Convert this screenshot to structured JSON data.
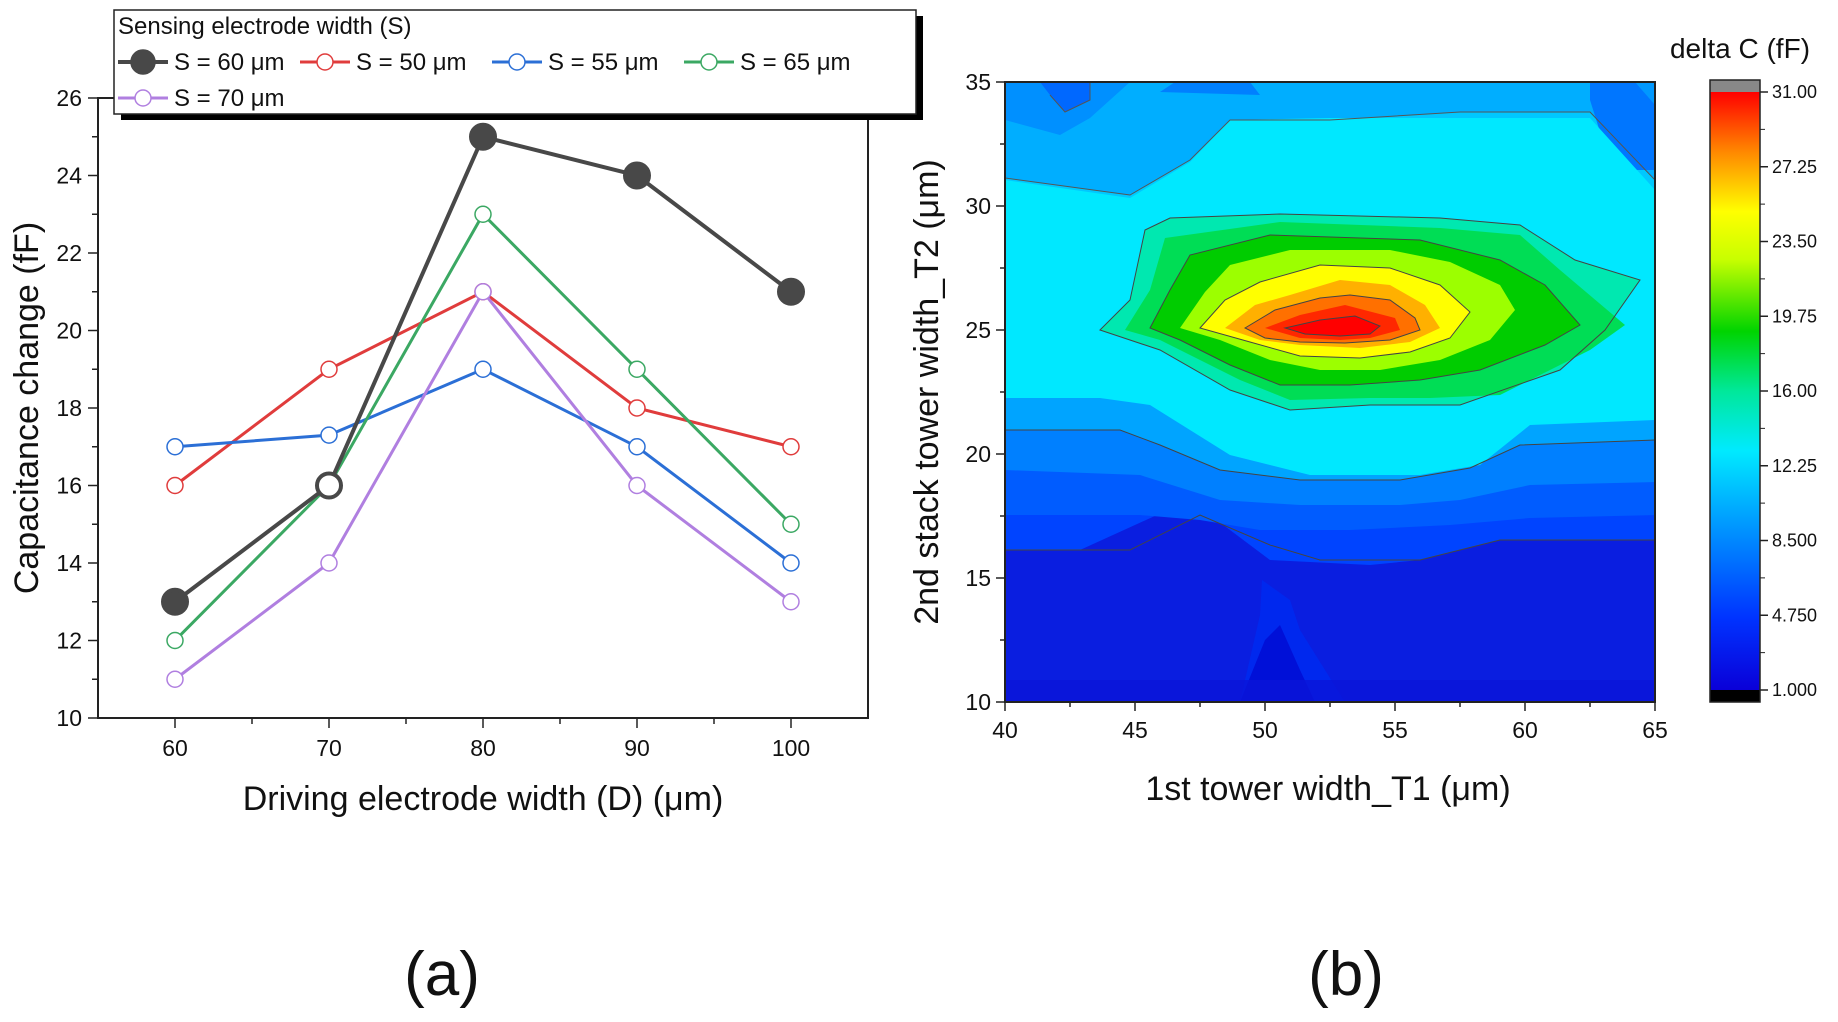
{
  "figure": {
    "panel_a_label": "(a)",
    "panel_b_label": "(b)"
  },
  "chart_data": [
    {
      "type": "line",
      "xlabel": "Driving electrode width (D) (μm)",
      "ylabel": "Capacitance change (fF)",
      "x": [
        60,
        70,
        80,
        90,
        100
      ],
      "xlim": [
        55,
        105
      ],
      "ylim": [
        10,
        26
      ],
      "xticks": [
        60,
        70,
        80,
        90,
        100
      ],
      "yticks": [
        10,
        12,
        14,
        16,
        18,
        20,
        22,
        24,
        26
      ],
      "legend": {
        "title": "Sensing electrode width (S)",
        "position": "top"
      },
      "series": [
        {
          "name": "S = 60 μm",
          "color": "#484848",
          "filled": true,
          "values": [
            13,
            16,
            25,
            24,
            21
          ]
        },
        {
          "name": "S = 50 μm",
          "color": "#e03c3c",
          "filled": false,
          "values": [
            16,
            19,
            21,
            18,
            17
          ]
        },
        {
          "name": "S = 55 μm",
          "color": "#2b6fd6",
          "filled": false,
          "values": [
            17,
            17.3,
            19,
            17,
            14
          ]
        },
        {
          "name": "S = 65 μm",
          "color": "#3ba863",
          "filled": false,
          "values": [
            12,
            16,
            23,
            19,
            15
          ]
        },
        {
          "name": "S = 70 μm",
          "color": "#b07fe0",
          "filled": false,
          "values": [
            11,
            14,
            21,
            16,
            13
          ]
        }
      ]
    },
    {
      "type": "heatmap",
      "title": "delta C (fF)",
      "xlabel": "1st  tower width_T1 (μm)",
      "ylabel": "2nd stack tower width_T2 (μm)",
      "xlim": [
        40,
        65
      ],
      "ylim": [
        10,
        35
      ],
      "xticks": [
        40,
        45,
        50,
        55,
        60,
        65
      ],
      "yticks": [
        10,
        15,
        20,
        25,
        30,
        35
      ],
      "peak": {
        "x": 53,
        "y": 25,
        "value": 31
      },
      "colorbar": {
        "range": [
          1.0,
          31.0
        ],
        "ticks": [
          "31.00",
          "27.25",
          "23.50",
          "19.75",
          "16.00",
          "12.25",
          "8.500",
          "4.750",
          "1.000"
        ]
      }
    }
  ]
}
